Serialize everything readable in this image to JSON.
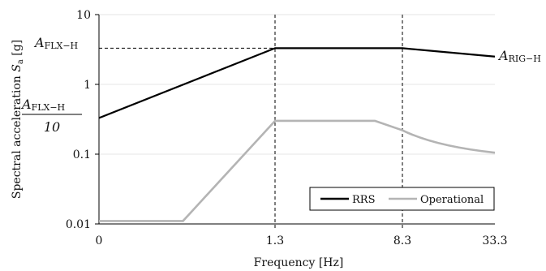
{
  "chart_data": {
    "type": "line",
    "xlabel": "Frequency [Hz]",
    "ylabel": "Spectral acceleration S_a [g]",
    "ylabel_parts": {
      "prefix": "Spectral acceleration ",
      "symbol": "S",
      "subscript": "a",
      "unit": "[g]"
    },
    "y_scale": "log",
    "ylim": [
      0.01,
      10
    ],
    "y_ticks": [
      "0.01",
      "0.1",
      "1",
      "10"
    ],
    "x_ticks": [
      "0",
      "1.3",
      "8.3",
      "33.3"
    ],
    "legend_placement": "bottom-right",
    "series": [
      {
        "name": "RRS",
        "color": "#000000",
        "points": [
          [
            0,
            0.33
          ],
          [
            1.3,
            3.3
          ],
          [
            8.3,
            3.3
          ],
          [
            33.3,
            2.5
          ]
        ]
      },
      {
        "name": "Operational",
        "color": "#b4b4b4",
        "points": [
          [
            0,
            0.011
          ],
          [
            0.62,
            0.011
          ],
          [
            1.3,
            0.3
          ],
          [
            6.8,
            0.3
          ],
          [
            8.3,
            0.22
          ],
          [
            17,
            0.13
          ],
          [
            33.3,
            0.105
          ]
        ]
      }
    ],
    "annotations": {
      "a_flx_h": {
        "symbol": "A",
        "subscript": "FLX−H"
      },
      "a_flx_h_over_10": {
        "symbol": "A",
        "subscript": "FLX−H",
        "denominator": "10"
      },
      "a_rig_h": {
        "symbol": "A",
        "subscript": "RIG−H"
      }
    },
    "reference_lines": {
      "vertical_at_x": [
        1.3,
        8.3
      ],
      "horizontal_at_y": 3.3
    }
  }
}
